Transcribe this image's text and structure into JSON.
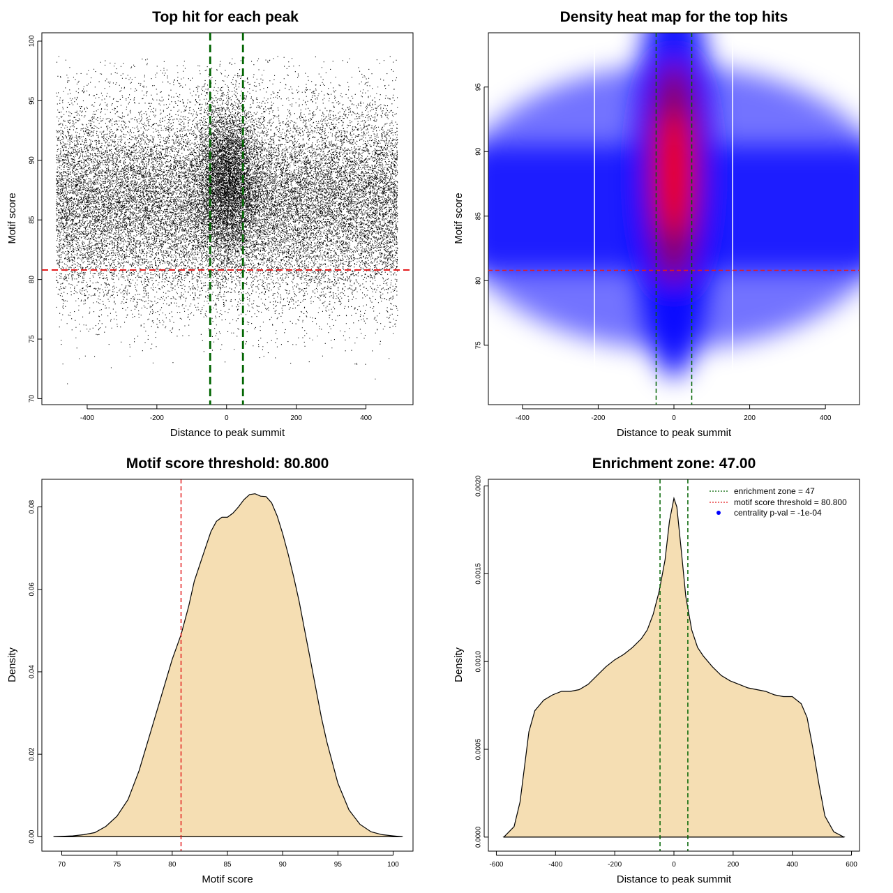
{
  "colors": {
    "threshold_line": "#e41a1c",
    "zone_line": "#006400",
    "density_fill": "#f5deb3",
    "heat_low": "#ffffff",
    "heat_mid": "#0000ff",
    "heat_high": "#ff0000",
    "legend_dot": "#0000ff"
  },
  "chart_data": [
    {
      "id": "top-hits-scatter",
      "type": "scatter",
      "title": "Top hit for each peak",
      "xlabel": "Distance to peak summit",
      "ylabel": "Motif score",
      "xlim": [
        -530,
        535
      ],
      "ylim": [
        69.5,
        100.7
      ],
      "x_ticks": [
        -400,
        -200,
        0,
        200,
        400
      ],
      "y_ticks": [
        70,
        75,
        80,
        85,
        90,
        95,
        100
      ],
      "x_tick_labels": [
        "-400",
        "-200",
        "0",
        "200",
        "400"
      ],
      "y_tick_labels": [
        "70",
        "75",
        "80",
        "85",
        "90",
        "95",
        "100"
      ],
      "point_count": 30000,
      "points_description": {
        "background": {
          "x_range": [
            -490,
            490
          ],
          "score_mean": 86.5,
          "score_sd": 4.2
        },
        "central": {
          "x_center": 0,
          "x_sd": 45,
          "score_mean": 88.5,
          "score_sd": 3.3
        }
      },
      "threshold": 80.8,
      "zone_edges": [
        -47,
        47
      ]
    },
    {
      "id": "density-heatmap",
      "type": "heatmap",
      "title": "Density heat map for the top hits",
      "xlabel": "Distance to peak summit",
      "ylabel": "Motif score",
      "xlim": [
        -490,
        490
      ],
      "ylim": [
        70.4,
        99.2
      ],
      "x_ticks": [
        -400,
        -200,
        0,
        200,
        400
      ],
      "y_ticks": [
        75,
        80,
        85,
        90,
        95
      ],
      "x_tick_labels": [
        "-400",
        "-200",
        "0",
        "200",
        "400"
      ],
      "y_tick_labels": [
        "75",
        "80",
        "85",
        "90",
        "95"
      ],
      "hotspot": {
        "x": 0,
        "y": 88.3
      },
      "threshold": 80.8,
      "zone_edges": [
        -47,
        47
      ],
      "white_gaps_x": [
        -210,
        155
      ]
    },
    {
      "id": "score-density",
      "type": "area",
      "title": "Motif score threshold: 80.800",
      "xlabel": "Motif score",
      "ylabel": "Density",
      "xlim": [
        68.2,
        101.8
      ],
      "ylim": [
        -0.0035,
        0.0867
      ],
      "x_ticks": [
        70,
        75,
        80,
        85,
        90,
        95,
        100
      ],
      "y_ticks": [
        0,
        0.02,
        0.04,
        0.06,
        0.08
      ],
      "x_tick_labels": [
        "70",
        "75",
        "80",
        "85",
        "90",
        "95",
        "100"
      ],
      "y_tick_labels": [
        "0.00",
        "0.02",
        "0.04",
        "0.06",
        "0.08"
      ],
      "x": [
        69.3,
        71.0,
        72.0,
        73.0,
        74.0,
        75.0,
        76.0,
        77.0,
        78.0,
        79.0,
        80.0,
        80.8,
        81.5,
        82.0,
        82.5,
        83.0,
        83.5,
        84.0,
        84.5,
        85.0,
        85.5,
        86.0,
        86.5,
        87.0,
        87.5,
        88.0,
        88.5,
        89.0,
        89.5,
        90.0,
        90.5,
        91.0,
        91.5,
        92.0,
        92.5,
        93.0,
        93.5,
        94.0,
        95.0,
        96.0,
        97.0,
        98.0,
        99.0,
        100.0,
        100.8
      ],
      "y": [
        0.0,
        0.0002,
        0.0005,
        0.001,
        0.0025,
        0.005,
        0.009,
        0.016,
        0.025,
        0.034,
        0.043,
        0.049,
        0.056,
        0.062,
        0.066,
        0.07,
        0.074,
        0.0765,
        0.0775,
        0.0775,
        0.0785,
        0.08,
        0.0818,
        0.083,
        0.0832,
        0.0826,
        0.0825,
        0.081,
        0.0778,
        0.0735,
        0.0685,
        0.063,
        0.057,
        0.05,
        0.043,
        0.036,
        0.029,
        0.023,
        0.013,
        0.0065,
        0.003,
        0.0012,
        0.0005,
        0.0002,
        0.0
      ],
      "threshold": 80.8
    },
    {
      "id": "distance-density",
      "type": "area",
      "title": "Enrichment zone: 47.00",
      "xlabel": "Distance to peak summit",
      "ylabel": "Density",
      "xlim": [
        -627,
        627
      ],
      "ylim": [
        -8e-05,
        0.002038
      ],
      "x_ticks": [
        -600,
        -400,
        -200,
        0,
        200,
        400,
        600
      ],
      "y_ticks": [
        0,
        0.0005,
        0.001,
        0.0015,
        0.002
      ],
      "x_tick_labels": [
        "-600",
        "-400",
        "-200",
        "0",
        "200",
        "400",
        "600"
      ],
      "y_tick_labels": [
        "0.0000",
        "0.0005",
        "0.0010",
        "0.0015",
        "0.0020"
      ],
      "x": [
        -575,
        -540,
        -520,
        -505,
        -490,
        -470,
        -440,
        -410,
        -380,
        -350,
        -320,
        -290,
        -260,
        -230,
        -200,
        -170,
        -140,
        -110,
        -90,
        -70,
        -50,
        -30,
        -15,
        0,
        10,
        25,
        40,
        60,
        80,
        100,
        130,
        160,
        190,
        220,
        250,
        280,
        310,
        340,
        370,
        400,
        430,
        450,
        470,
        490,
        510,
        540,
        575
      ],
      "y": [
        0.0,
        6e-05,
        0.0002,
        0.0004,
        0.0006,
        0.00072,
        0.00078,
        0.00081,
        0.00083,
        0.00083,
        0.00084,
        0.00087,
        0.00092,
        0.00097,
        0.00101,
        0.00104,
        0.00108,
        0.00113,
        0.00118,
        0.00127,
        0.0014,
        0.00158,
        0.0018,
        0.00193,
        0.00188,
        0.00163,
        0.00137,
        0.00118,
        0.00108,
        0.00103,
        0.00097,
        0.00092,
        0.00089,
        0.00087,
        0.00085,
        0.00084,
        0.00083,
        0.00081,
        0.0008,
        0.0008,
        0.00076,
        0.00068,
        0.0005,
        0.0003,
        0.00012,
        3e-05,
        0.0
      ],
      "zone_edges": [
        -47,
        47
      ],
      "legend": [
        {
          "label": "enrichment zone = 47",
          "style": "zone"
        },
        {
          "label": "motif score threshold = 80.800",
          "style": "threshold"
        },
        {
          "label": "centrality p-val = -1e-04",
          "style": "dot"
        }
      ]
    }
  ]
}
